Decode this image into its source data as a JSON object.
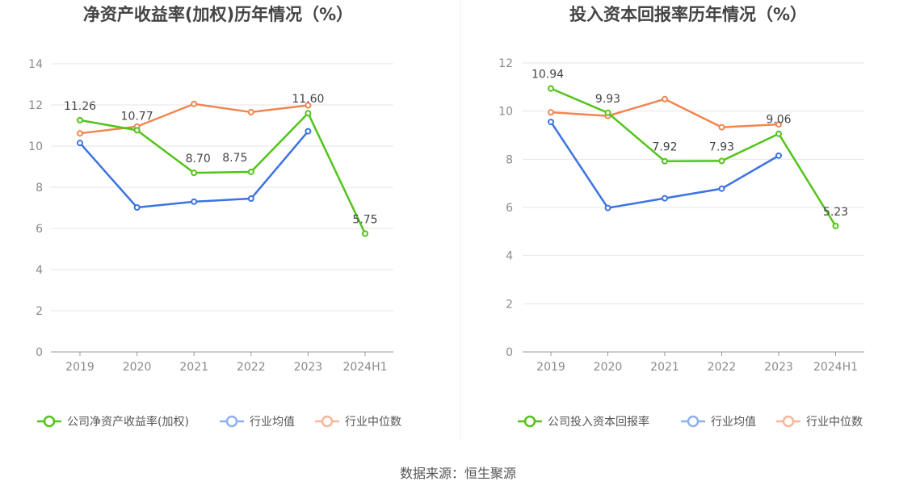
{
  "chart_data": [
    {
      "type": "line",
      "title": "净资产收益率(加权)历年情况（%）",
      "categories": [
        "2019",
        "2020",
        "2021",
        "2022",
        "2023",
        "2024H1"
      ],
      "ylim": [
        0,
        14
      ],
      "yticks": [
        0,
        2,
        4,
        6,
        8,
        10,
        12,
        14
      ],
      "grid": true,
      "legend_position": "bottom",
      "series": [
        {
          "name": "公司净资产收益率(加权)",
          "color": "#52c41a",
          "values": [
            11.26,
            10.77,
            8.7,
            8.75,
            11.6,
            5.75
          ],
          "labels": [
            "11.26",
            "10.77",
            "8.70",
            "8.75",
            "11.60",
            "5.75"
          ]
        },
        {
          "name": "行业均值",
          "color": "#3b73e0",
          "values": [
            10.15,
            7.02,
            7.3,
            7.45,
            10.72,
            null
          ]
        },
        {
          "name": "行业中位数",
          "color": "#f08650",
          "values": [
            10.62,
            10.95,
            12.05,
            11.65,
            11.98,
            null
          ]
        }
      ]
    },
    {
      "type": "line",
      "title": "投入资本回报率历年情况（%）",
      "categories": [
        "2019",
        "2020",
        "2021",
        "2022",
        "2023",
        "2024H1"
      ],
      "ylim": [
        0,
        12
      ],
      "yticks": [
        0,
        2,
        4,
        6,
        8,
        10,
        12
      ],
      "grid": true,
      "legend_position": "bottom",
      "series": [
        {
          "name": "公司投入资本回报率",
          "color": "#52c41a",
          "values": [
            10.94,
            9.93,
            7.92,
            7.93,
            9.06,
            5.23
          ],
          "labels": [
            "10.94",
            "9.93",
            "7.92",
            "7.93",
            "9.06",
            "5.23"
          ]
        },
        {
          "name": "行业均值",
          "color": "#3b73e0",
          "values": [
            9.55,
            5.98,
            6.38,
            6.78,
            8.15,
            null
          ]
        },
        {
          "name": "行业中位数",
          "color": "#f08650",
          "values": [
            9.95,
            9.8,
            10.5,
            9.33,
            9.45,
            null
          ]
        }
      ]
    }
  ],
  "footer": {
    "source": "数据来源：恒生聚源"
  }
}
